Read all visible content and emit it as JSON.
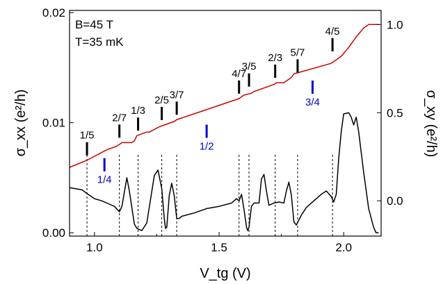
{
  "chart_data": {
    "type": "line",
    "annotation": {
      "field": "B=45 T",
      "temperature": "T=35 mK"
    },
    "xlabel": "V_tg (V)",
    "ylabel_left": "σ_xx (e²/h)",
    "ylabel_right": "σ_xy (e²/h)",
    "xlim": [
      0.9,
      2.15
    ],
    "ylim_left": [
      -0.0003,
      0.0202
    ],
    "ylim_right": [
      -0.2,
      1.08
    ],
    "x_ticks": [
      1.0,
      1.5,
      2.0
    ],
    "x_tick_labels": [
      "1.0",
      "1.5",
      "2.0"
    ],
    "y_left_ticks": [
      0.0,
      0.01,
      0.02
    ],
    "y_left_tick_labels": [
      "0.00",
      "0.01",
      "0.02"
    ],
    "y_right_ticks": [
      0.0,
      0.5,
      1.0
    ],
    "y_right_tick_labels": [
      "0.0",
      "0.5",
      "1.0"
    ],
    "series": [
      {
        "axis": "left",
        "color": "#000000",
        "x": [
          0.9,
          0.95,
          0.98,
          1.0,
          1.03,
          1.06,
          1.08,
          1.1,
          1.11,
          1.13,
          1.14,
          1.16,
          1.17,
          1.19,
          1.21,
          1.24,
          1.255,
          1.27,
          1.28,
          1.285,
          1.29,
          1.3,
          1.31,
          1.32,
          1.33,
          1.34,
          1.35,
          1.4,
          1.45,
          1.5,
          1.55,
          1.57,
          1.58,
          1.59,
          1.6,
          1.61,
          1.615,
          1.62,
          1.63,
          1.64,
          1.66,
          1.67,
          1.68,
          1.69,
          1.7,
          1.72,
          1.74,
          1.76,
          1.77,
          1.78,
          1.79,
          1.8,
          1.81,
          1.83,
          1.85,
          1.88,
          1.91,
          1.93,
          1.95,
          1.96,
          1.97,
          1.98,
          1.99,
          2.0,
          2.02,
          2.03,
          2.04,
          2.05,
          2.06,
          2.08,
          2.1,
          2.12,
          2.13,
          2.14
        ],
        "y": [
          0.0041,
          0.0039,
          0.0034,
          0.0031,
          0.0029,
          0.0026,
          0.0024,
          0.0019,
          0.0024,
          0.005,
          0.0038,
          0.0008,
          0.0004,
          0.0002,
          0.0009,
          0.0052,
          0.0057,
          0.004,
          0.0013,
          0.0004,
          0.0005,
          0.0034,
          0.0045,
          0.0034,
          0.0013,
          0.0013,
          0.0015,
          0.0018,
          0.0022,
          0.0024,
          0.0027,
          0.0031,
          0.0029,
          0.0035,
          0.0021,
          0.0005,
          0.0002,
          0.0005,
          0.0024,
          0.0027,
          0.0027,
          0.0049,
          0.0053,
          0.0038,
          0.0025,
          0.0027,
          0.0028,
          0.0027,
          0.0038,
          0.0046,
          0.0034,
          0.001,
          0.0007,
          0.0016,
          0.0023,
          0.0029,
          0.0035,
          0.0038,
          0.0033,
          0.0028,
          0.0035,
          0.0068,
          0.0092,
          0.0108,
          0.0109,
          0.0105,
          0.0098,
          0.0105,
          0.0092,
          0.0055,
          0.0022,
          0.0005,
          0.0,
          0.0
        ]
      },
      {
        "axis": "right",
        "color": "#cc0000",
        "x": [
          0.9,
          0.97,
          1.05,
          1.09,
          1.1,
          1.11,
          1.15,
          1.16,
          1.17,
          1.21,
          1.22,
          1.26,
          1.28,
          1.32,
          1.33,
          1.58,
          1.59,
          1.6,
          1.63,
          1.64,
          1.7,
          1.72,
          1.73,
          1.76,
          1.77,
          1.79,
          1.8,
          1.95,
          1.96,
          1.99,
          2.02,
          2.05,
          2.08,
          2.1,
          2.12,
          2.14
        ],
        "y": [
          0.19,
          0.23,
          0.29,
          0.31,
          0.32,
          0.33,
          0.33,
          0.34,
          0.37,
          0.39,
          0.39,
          0.42,
          0.43,
          0.45,
          0.46,
          0.58,
          0.59,
          0.6,
          0.61,
          0.62,
          0.65,
          0.66,
          0.67,
          0.67,
          0.68,
          0.7,
          0.72,
          0.78,
          0.79,
          0.82,
          0.87,
          0.93,
          0.98,
          1.0,
          1.0,
          1.0
        ]
      }
    ],
    "filling_factor_markers": [
      {
        "label": "1/5",
        "x": 0.97,
        "sxy": 0.25,
        "color": "black"
      },
      {
        "label": "2/7",
        "x": 1.1,
        "sxy": 0.35,
        "color": "black"
      },
      {
        "label": "1/3",
        "x": 1.175,
        "sxy": 0.39,
        "color": "black"
      },
      {
        "label": "2/5",
        "x": 1.27,
        "sxy": 0.45,
        "color": "black"
      },
      {
        "label": "3/7",
        "x": 1.33,
        "sxy": 0.48,
        "color": "black"
      },
      {
        "label": "4/7",
        "x": 1.58,
        "sxy": 0.6,
        "color": "black"
      },
      {
        "label": "3/5",
        "x": 1.62,
        "sxy": 0.64,
        "color": "black"
      },
      {
        "label": "2/3",
        "x": 1.725,
        "sxy": 0.69,
        "color": "black"
      },
      {
        "label": "5/7",
        "x": 1.815,
        "sxy": 0.72,
        "color": "black"
      },
      {
        "label": "4/5",
        "x": 1.955,
        "sxy": 0.84,
        "color": "black"
      },
      {
        "label": "1/4",
        "x": 1.04,
        "sxy": 0.25,
        "color": "blue"
      },
      {
        "label": "1/2",
        "x": 1.45,
        "sxy": 0.44,
        "color": "blue"
      },
      {
        "label": "3/4",
        "x": 1.875,
        "sxy": 0.69,
        "color": "blue"
      }
    ],
    "dashed_guides_x": [
      0.97,
      1.1,
      1.175,
      1.27,
      1.33,
      1.58,
      1.62,
      1.725,
      1.815,
      1.955
    ]
  }
}
